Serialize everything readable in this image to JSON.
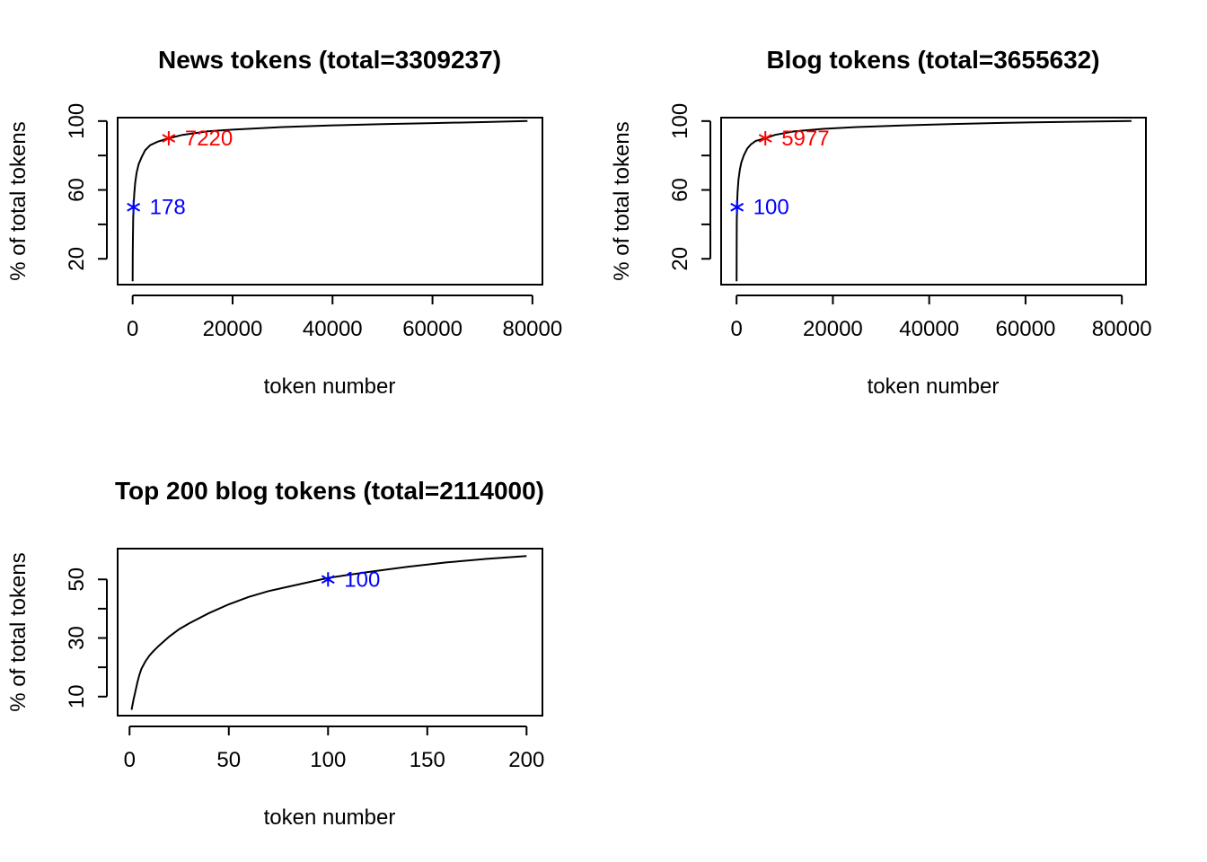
{
  "chart_data": [
    {
      "type": "line",
      "title": "News tokens (total=3309237)",
      "xlabel": "token number",
      "ylabel": "% of total tokens",
      "xlim": [
        -3000,
        82000
      ],
      "ylim": [
        5,
        102
      ],
      "xticks": [
        0,
        20000,
        40000,
        60000,
        80000
      ],
      "xtick_labels": [
        "0",
        "20000",
        "40000",
        "60000",
        "80000"
      ],
      "yticks": [
        20,
        40,
        60,
        80,
        100
      ],
      "ytick_labels": [
        "20",
        "",
        "60",
        "",
        "100"
      ],
      "series": [
        {
          "x": [
            1,
            20,
            50,
            100,
            178,
            300,
            500,
            800,
            1200,
            1800,
            2500,
            3500,
            5000,
            7220,
            10000,
            15000,
            20000,
            30000,
            40000,
            50000,
            60000,
            70000,
            79000
          ],
          "y": [
            7,
            22,
            32,
            43,
            50,
            57,
            64,
            70,
            75,
            79,
            83,
            86,
            88,
            90,
            92,
            94,
            95,
            96.5,
            97.5,
            98.2,
            98.8,
            99.4,
            100
          ]
        }
      ],
      "markers": [
        {
          "x": 178,
          "y": 50,
          "label": "178",
          "color": "#0000ff"
        },
        {
          "x": 7220,
          "y": 90,
          "label": "7220",
          "color": "#ff0000"
        }
      ]
    },
    {
      "type": "line",
      "title": "Blog tokens (total=3655632)",
      "xlabel": "token number",
      "ylabel": "% of total tokens",
      "xlim": [
        -3200,
        85000
      ],
      "ylim": [
        5,
        102
      ],
      "xticks": [
        0,
        20000,
        40000,
        60000,
        80000
      ],
      "xtick_labels": [
        "0",
        "20000",
        "40000",
        "60000",
        "80000"
      ],
      "yticks": [
        20,
        40,
        60,
        80,
        100
      ],
      "ytick_labels": [
        "20",
        "",
        "60",
        "",
        "100"
      ],
      "series": [
        {
          "x": [
            1,
            20,
            50,
            100,
            200,
            400,
            700,
            1000,
            1500,
            2200,
            3000,
            4000,
            5977,
            8000,
            12000,
            18000,
            25000,
            35000,
            45000,
            55000,
            65000,
            75000,
            82000
          ],
          "y": [
            7,
            30,
            42,
            50,
            58,
            66,
            72,
            76,
            80,
            84,
            86.5,
            88.5,
            90,
            92,
            94,
            95.5,
            96.5,
            97.5,
            98.3,
            98.9,
            99.4,
            99.8,
            100
          ]
        }
      ],
      "markers": [
        {
          "x": 100,
          "y": 50,
          "label": "100",
          "color": "#0000ff"
        },
        {
          "x": 5977,
          "y": 90,
          "label": "5977",
          "color": "#ff0000"
        }
      ]
    },
    {
      "type": "line",
      "title": "Top 200 blog tokens (total=2114000)",
      "xlabel": "token number",
      "ylabel": "% of total tokens",
      "xlim": [
        -6,
        208
      ],
      "ylim": [
        3.5,
        60.5
      ],
      "xticks": [
        0,
        50,
        100,
        150,
        200
      ],
      "xtick_labels": [
        "0",
        "50",
        "100",
        "150",
        "200"
      ],
      "yticks": [
        10,
        20,
        30,
        40,
        50
      ],
      "ytick_labels": [
        "10",
        "",
        "30",
        "",
        "50"
      ],
      "series": [
        {
          "x": [
            1,
            2,
            3,
            4,
            5,
            6,
            8,
            10,
            12,
            15,
            20,
            25,
            30,
            40,
            50,
            60,
            70,
            80,
            90,
            100,
            120,
            140,
            160,
            180,
            200
          ],
          "y": [
            5.5,
            9,
            12,
            15,
            17.5,
            19.5,
            22,
            24,
            25.5,
            27.5,
            30.5,
            33,
            35,
            38.5,
            41.5,
            44,
            46,
            47.5,
            49,
            50.5,
            52.5,
            54.3,
            55.8,
            57,
            58
          ]
        }
      ],
      "markers": [
        {
          "x": 100,
          "y": 50,
          "label": "100",
          "color": "#0000ff"
        }
      ]
    }
  ]
}
